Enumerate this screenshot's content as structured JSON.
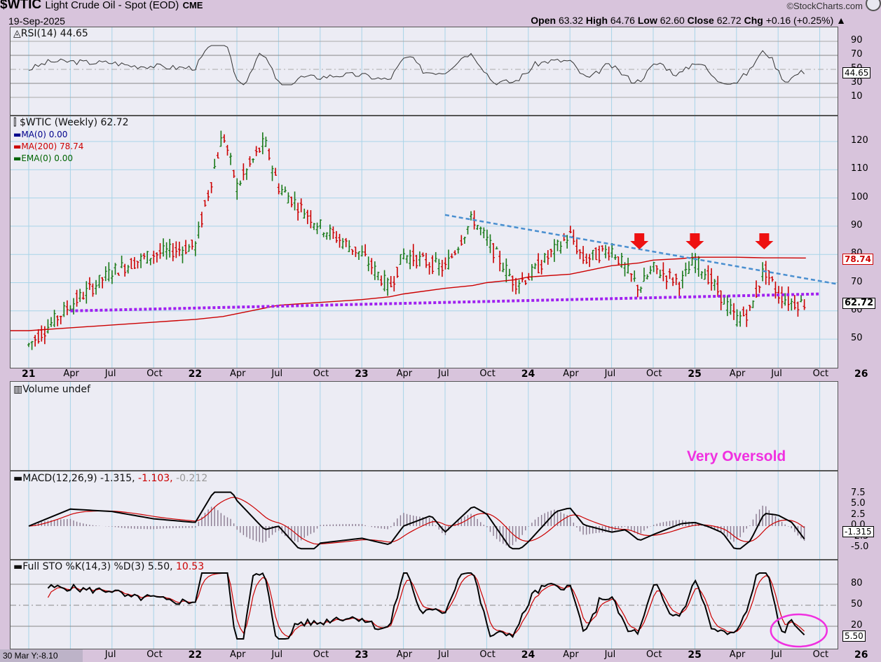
{
  "header": {
    "symbol": "$WTIC",
    "name": "Light Crude Oil - Spot (EOD)",
    "exchange": "CME",
    "date": "19-Sep-2025",
    "brand": "©StockCharts.com",
    "open_label": "Open",
    "open": "63.32",
    "high_label": "High",
    "high": "64.76",
    "low_label": "Low",
    "low": "62.60",
    "close_label": "Close",
    "close": "62.72",
    "chg_label": "Chg",
    "chg": "+0.16 (+0.25%)"
  },
  "rsi": {
    "legend": "RSI(14) 44.65",
    "ticks": [
      "90",
      "70",
      "50",
      "30",
      "10"
    ],
    "value_tag": "44.65"
  },
  "price": {
    "legend_title": "$WTIC (Weekly) 62.72",
    "legend_ma0": "MA(0) 0.00",
    "legend_ma200": "MA(200) 78.74",
    "legend_ema0": "EMA(0) 0.00",
    "ticks": [
      "120",
      "110",
      "100",
      "90",
      "80",
      "70",
      "60",
      "50"
    ],
    "ma_tag": "78.74",
    "close_tag": "62.72",
    "colors": {
      "up": "#1a7a1a",
      "down": "#cc0000",
      "ma200": "#cc0000",
      "downtrend": "#4a8fd0",
      "support": "#a020f0",
      "arrow": "#ee1111"
    }
  },
  "volume": {
    "legend": "Volume undef",
    "annotation": "Very Oversold"
  },
  "macd": {
    "legend_main": "MACD(12,26,9) -1.315,",
    "legend_signal": "-1.103,",
    "legend_hist": "-0.212",
    "ticks": [
      "7.5",
      "5.0",
      "2.5",
      "0.0",
      "-2.5",
      "-5.0"
    ],
    "value_tag": "-1.315"
  },
  "sto": {
    "legend_main": "Full STO %K(14,3) %D(3) 5.50,",
    "legend_d": "10.53",
    "ticks": [
      "80",
      "50",
      "20"
    ],
    "value_tag": "5.50"
  },
  "x_axis": {
    "main": [
      "21",
      "Apr",
      "Jul",
      "Oct",
      "22",
      "Apr",
      "Jul",
      "Oct",
      "23",
      "Apr",
      "Jul",
      "Oct",
      "24",
      "Apr",
      "Jul",
      "Oct",
      "25",
      "Apr",
      "Jul",
      "Oct",
      "26"
    ],
    "bottom": [
      "Jul",
      "Oct",
      "22",
      "Apr",
      "Jul",
      "Oct",
      "23",
      "Apr",
      "Jul",
      "Oct",
      "24",
      "Apr",
      "Jul",
      "Oct",
      "25",
      "Apr",
      "Jul",
      "Oct",
      "26"
    ]
  },
  "footer": "30 Mar Y:-8.10",
  "chart_data": {
    "type": "line",
    "title": "$WTIC Light Crude Oil - Spot (EOD) CME",
    "xlabel": "",
    "ylabel": "",
    "ylim": [
      42,
      128
    ],
    "x": [
      "2021-01",
      "2021-04",
      "2021-07",
      "2021-10",
      "2022-01",
      "2022-03",
      "2022-04",
      "2022-06",
      "2022-07",
      "2022-10",
      "2023-01",
      "2023-03",
      "2023-04",
      "2023-07",
      "2023-09",
      "2023-10",
      "2023-12",
      "2024-01",
      "2024-04",
      "2024-05",
      "2024-06",
      "2024-07",
      "2024-09",
      "2024-10",
      "2024-12",
      "2025-01",
      "2025-02",
      "2025-04",
      "2025-05",
      "2025-06",
      "2025-07",
      "2025-08",
      "2025-09"
    ],
    "series": [
      {
        "name": "$WTIC (Weekly)",
        "values": [
          48,
          62,
          74,
          80,
          83,
          123,
          104,
          120,
          104,
          90,
          80,
          68,
          80,
          75,
          93,
          85,
          70,
          72,
          87,
          78,
          80,
          82,
          68,
          75,
          70,
          78,
          72,
          57,
          60,
          75,
          66,
          63,
          62.72
        ]
      },
      {
        "name": "MA(200)",
        "values": [
          53,
          54,
          55,
          56,
          57,
          58,
          59,
          61,
          62,
          63,
          64,
          65,
          66,
          68,
          69,
          70,
          71,
          72,
          73,
          74,
          75,
          76,
          77,
          78,
          78.5,
          79,
          79,
          79,
          78.9,
          78.8,
          78.8,
          78.75,
          78.74
        ]
      }
    ],
    "lines": [
      {
        "name": "downtrend",
        "from": [
          "2023-07",
          94
        ],
        "to": [
          "2026-01",
          68
        ]
      },
      {
        "name": "support",
        "from": [
          "2021-04",
          60
        ],
        "to": [
          "2025-10",
          66
        ]
      }
    ],
    "markers": [
      "2024-09",
      "2025-01",
      "2025-06"
    ],
    "indicators": {
      "RSI(14)": 44.65,
      "MACD(12,26,9)": [
        -1.315,
        -1.103,
        -0.212
      ],
      "Full STO %K(14,3) %D(3)": [
        5.5,
        10.53
      ]
    }
  }
}
